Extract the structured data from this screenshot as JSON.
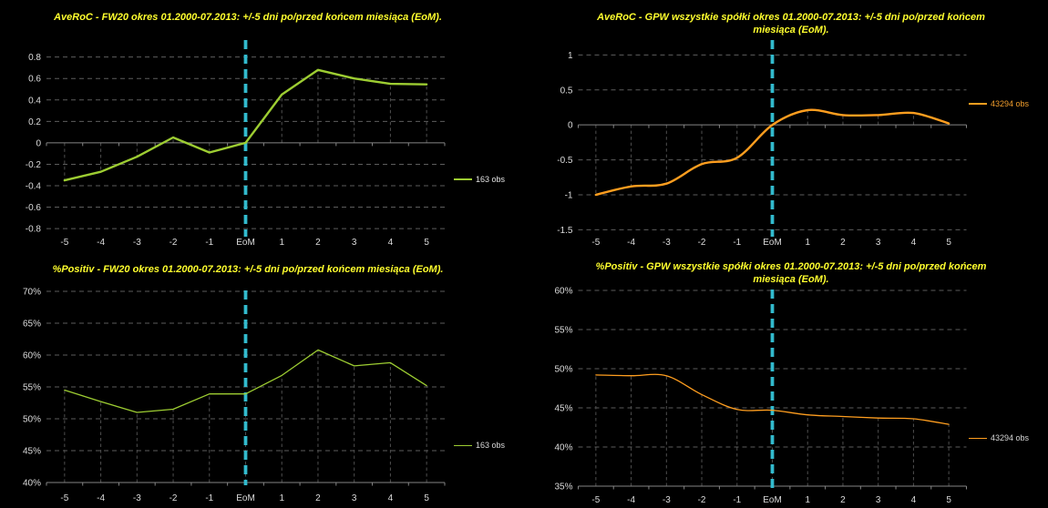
{
  "page": {
    "background": "#000000",
    "colors": {
      "title": "#ffff2e",
      "tick_label": "#dcdcdc",
      "gridline": "#5d5d5d",
      "drop_line": "#4f4f4f",
      "axis": "#858585",
      "eom_line": "#32bacd",
      "green": "#9dcd32",
      "orange": "#ff9e1f"
    }
  },
  "chart_data": [
    {
      "id": "averoc-fw20",
      "type": "line",
      "title": "AveRoC - FW20 okres 01.2000-07.2013: +/-5 dni po/przed końcem miesiąca (EoM).",
      "categories": [
        "-5",
        "-4",
        "-3",
        "-2",
        "-1",
        "EoM",
        "1",
        "2",
        "3",
        "4",
        "5"
      ],
      "series": [
        {
          "name": "163 obs",
          "color": "#9dcd32",
          "smooth": false,
          "values": [
            -0.35,
            -0.27,
            -0.13,
            0.05,
            -0.09,
            0.0,
            0.45,
            0.68,
            0.6,
            0.55,
            0.545
          ]
        }
      ],
      "legend": {
        "label": "163 obs",
        "text_color": "#e3e3e3",
        "position": "right"
      },
      "y_tick_values": [
        0.8,
        0.6,
        0.4,
        0.2,
        0,
        -0.2,
        -0.4,
        -0.6,
        -0.8
      ],
      "y_tick_labels": [
        "0.8",
        "0.6",
        "0.4",
        "0.2",
        "0",
        "-0.2",
        "-0.4",
        "-0.6",
        "-0.8"
      ],
      "ylim": [
        -0.85,
        0.95
      ],
      "axis_baseline": 0,
      "eom_index": 5,
      "grid": true,
      "drop_lines": true
    },
    {
      "id": "averoc-gpw",
      "type": "line",
      "title": "AveRoC - GPW wszystkie spółki okres 01.2000-07.2013: +/-5 dni po/przed końcem miesiąca (EoM).",
      "categories": [
        "-5",
        "-4",
        "-3",
        "-2",
        "-1",
        "EoM",
        "1",
        "2",
        "3",
        "4",
        "5"
      ],
      "series": [
        {
          "name": "43294 obs",
          "color": "#ff9e1f",
          "smooth": true,
          "values": [
            -1.0,
            -0.88,
            -0.84,
            -0.56,
            -0.47,
            0.0,
            0.21,
            0.14,
            0.14,
            0.17,
            0.02
          ]
        }
      ],
      "legend": {
        "label": "43294 obs",
        "text_color": "#f09d2c",
        "position": "right"
      },
      "y_tick_values": [
        1,
        0.5,
        0,
        -0.5,
        -1,
        -1.5
      ],
      "y_tick_labels": [
        "1",
        "0.5",
        "0",
        "-0.5",
        "-1",
        "-1.5"
      ],
      "ylim": [
        -1.56,
        1.2
      ],
      "axis_baseline": 0,
      "eom_index": 5,
      "grid": true,
      "drop_lines": true
    },
    {
      "id": "positiv-fw20",
      "type": "line",
      "title": "%Positiv - FW20 okres 01.2000-07.2013: +/-5 dni po/przed końcem miesiąca (EoM).",
      "categories": [
        "-5",
        "-4",
        "-3",
        "-2",
        "-1",
        "EoM",
        "1",
        "2",
        "3",
        "4",
        "5"
      ],
      "series": [
        {
          "name": "163 obs",
          "color": "#9dcd32",
          "smooth": false,
          "values": [
            54.5,
            52.7,
            51.0,
            51.5,
            53.9,
            53.9,
            56.8,
            60.8,
            58.3,
            58.8,
            55.2
          ]
        }
      ],
      "legend": {
        "label": "163 obs",
        "text_color": "#dadada",
        "position": "right"
      },
      "y_tick_values": [
        70,
        65,
        60,
        55,
        50,
        45,
        40
      ],
      "y_tick_labels": [
        "70%",
        "65%",
        "60%",
        "55%",
        "50%",
        "45%",
        "40%"
      ],
      "ylim": [
        40,
        70
      ],
      "axis_baseline": 40,
      "eom_index": 5,
      "grid": true,
      "drop_lines": true
    },
    {
      "id": "positiv-gpw",
      "type": "line",
      "title": "%Positiv - GPW wszystkie spółki okres 01.2000-07.2013: +/-5 dni po/przed końcem miesiąca (EoM).",
      "categories": [
        "-5",
        "-4",
        "-3",
        "-2",
        "-1",
        "EoM",
        "1",
        "2",
        "3",
        "4",
        "5"
      ],
      "series": [
        {
          "name": "43294 obs",
          "color": "#ff9e1f",
          "smooth": true,
          "values": [
            49.2,
            49.1,
            49.1,
            46.7,
            44.8,
            44.7,
            44.1,
            43.9,
            43.7,
            43.6,
            42.9
          ]
        }
      ],
      "legend": {
        "label": "43294 obs",
        "text_color": "#d6d6d6",
        "position": "right"
      },
      "y_tick_values": [
        60,
        55,
        50,
        45,
        40,
        35
      ],
      "y_tick_labels": [
        "60%",
        "55%",
        "50%",
        "45%",
        "40%",
        "35%"
      ],
      "ylim": [
        35,
        60
      ],
      "axis_baseline": 35,
      "eom_index": 5,
      "grid": true,
      "drop_lines": true
    }
  ]
}
